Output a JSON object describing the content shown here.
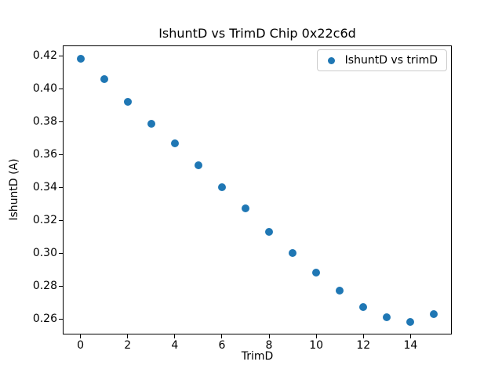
{
  "chart_data": {
    "type": "scatter",
    "title": "IshuntD vs TrimD Chip 0x22c6d",
    "xlabel": "TrimD",
    "ylabel": "IshuntD (A)",
    "legend": {
      "label": "IshuntD vs trimD",
      "position": "upper right"
    },
    "x": [
      0,
      1,
      2,
      3,
      4,
      5,
      6,
      7,
      8,
      9,
      10,
      11,
      12,
      13,
      14,
      15
    ],
    "y": [
      0.4185,
      0.406,
      0.392,
      0.379,
      0.367,
      0.3535,
      0.34,
      0.3275,
      0.313,
      0.3,
      0.288,
      0.277,
      0.267,
      0.261,
      0.258,
      0.263
    ],
    "xticks": [
      0,
      2,
      4,
      6,
      8,
      10,
      12,
      14
    ],
    "xtick_labels": [
      "0",
      "2",
      "4",
      "6",
      "8",
      "10",
      "12",
      "14"
    ],
    "yticks": [
      0.26,
      0.28,
      0.3,
      0.32,
      0.34,
      0.36,
      0.38,
      0.4,
      0.42
    ],
    "ytick_labels": [
      "0.26",
      "0.28",
      "0.30",
      "0.32",
      "0.34",
      "0.36",
      "0.38",
      "0.40",
      "0.42"
    ],
    "xlim": [
      -0.75,
      15.75
    ],
    "ylim": [
      0.2505,
      0.4265
    ],
    "grid": false,
    "marker_color": "#1f77b4",
    "background_color": "#ffffff",
    "spine_color": "#000000"
  }
}
